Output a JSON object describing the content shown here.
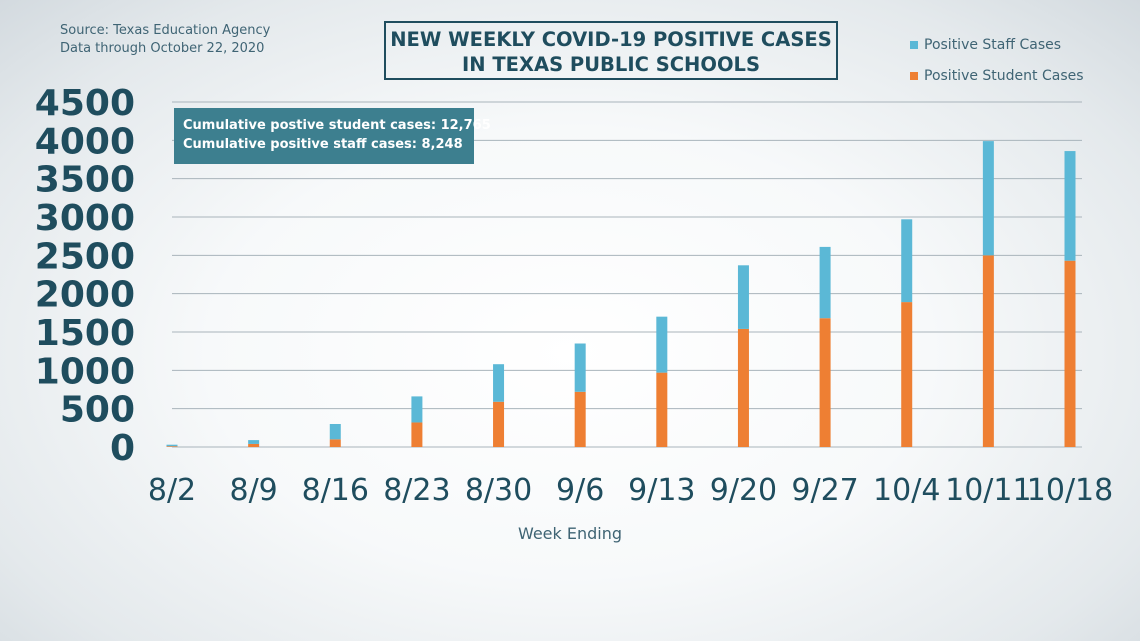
{
  "source": {
    "line1": "Source: Texas Education Agency",
    "line2": "Data through October 22, 2020"
  },
  "title": {
    "line1": "NEW WEEKLY COVID-19 POSITIVE CASES",
    "line2": "IN TEXAS PUBLIC SCHOOLS"
  },
  "legend": {
    "staff": "Positive Staff Cases",
    "student": "Positive Student Cases"
  },
  "annotation": {
    "line1": "Cumulative postive student cases: 12,765",
    "line2": "Cumulative positive staff cases: 8,248"
  },
  "colors": {
    "staff": "#5bb8d6",
    "student": "#ee7f33",
    "axis_text": "#1f4d5e",
    "gridline": "#a9b4bb"
  },
  "chart_data": {
    "type": "bar",
    "stacked": true,
    "categories": [
      "8/2",
      "8/9",
      "8/16",
      "8/23",
      "8/30",
      "9/6",
      "9/13",
      "9/20",
      "9/27",
      "10/4",
      "10/11",
      "10/18"
    ],
    "series": [
      {
        "name": "Positive Student Cases",
        "values": [
          10,
          40,
          100,
          320,
          590,
          720,
          970,
          1540,
          1680,
          1890,
          2500,
          2430
        ]
      },
      {
        "name": "Positive Staff Cases",
        "values": [
          20,
          50,
          200,
          340,
          490,
          630,
          730,
          830,
          930,
          1080,
          1490,
          1430
        ]
      }
    ],
    "xlabel": "Week Ending",
    "ylim": [
      0,
      4500
    ],
    "yticks": [
      0,
      500,
      1000,
      1500,
      2000,
      2500,
      3000,
      3500,
      4000,
      4500
    ],
    "grid": true,
    "legend_position": "top-right"
  }
}
